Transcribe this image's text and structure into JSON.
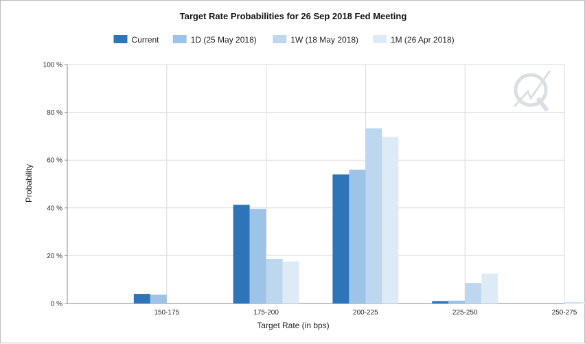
{
  "chart_data": {
    "type": "bar",
    "title": "Target Rate Probabilities for 26 Sep 2018 Fed Meeting",
    "xlabel": "Target Rate (in bps)",
    "ylabel": "Probability",
    "ylim": [
      0,
      100
    ],
    "y_ticks": [
      "0 %",
      "20 %",
      "40 %",
      "60 %",
      "80 %",
      "100 %"
    ],
    "categories": [
      "150-175",
      "175-200",
      "200-225",
      "225-250",
      "250-275"
    ],
    "grid": true,
    "legend_position": "top-center",
    "series": [
      {
        "name": "Current",
        "color": "#2e74b8",
        "values": [
          4.0,
          41.3,
          54.0,
          1.0,
          0.0
        ]
      },
      {
        "name": "1D (25 May 2018)",
        "color": "#9dc3e6",
        "values": [
          3.7,
          39.6,
          56.0,
          1.2,
          0.0
        ]
      },
      {
        "name": "1W (18 May 2018)",
        "color": "#bdd7ee",
        "values": [
          0.0,
          18.7,
          73.3,
          8.6,
          0.5
        ]
      },
      {
        "name": "1M (26 Apr 2018)",
        "color": "#ddebf7",
        "values": [
          0.0,
          17.6,
          69.7,
          12.5,
          0.7
        ]
      }
    ]
  },
  "watermark_icon": "quikstrike-logo-icon"
}
